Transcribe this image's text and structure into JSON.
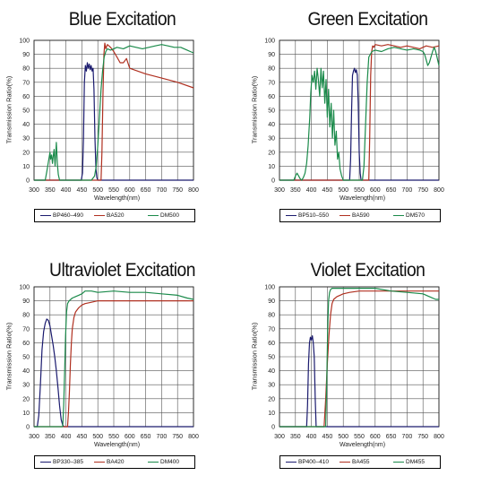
{
  "chart_data": [
    {
      "type": "line",
      "title": "Blue Excitation",
      "xlabel": "Wavelength(nm)",
      "ylabel": "Transmission Ratio(%)",
      "xlim": [
        300,
        800
      ],
      "ylim": [
        0,
        100
      ],
      "xticks": [
        300,
        350,
        400,
        450,
        500,
        550,
        600,
        650,
        700,
        750,
        800
      ],
      "yticks": [
        0,
        10,
        20,
        30,
        40,
        50,
        60,
        70,
        80,
        90,
        100
      ],
      "grid": true,
      "legend": "bottom",
      "series": [
        {
          "name": "BP460–490",
          "color": "#1a1a6e",
          "x": [
            300,
            448,
            452,
            455,
            458,
            461,
            464,
            467,
            470,
            473,
            476,
            479,
            482,
            485,
            488,
            491,
            494,
            497,
            500,
            503,
            800
          ],
          "y": [
            0,
            0,
            5,
            30,
            70,
            82,
            78,
            84,
            80,
            83,
            79,
            82,
            78,
            80,
            65,
            30,
            8,
            2,
            0,
            0,
            0
          ]
        },
        {
          "name": "BA520",
          "color": "#b03020",
          "x": [
            300,
            510,
            513,
            516,
            519,
            522,
            525,
            530,
            540,
            550,
            560,
            570,
            580,
            590,
            600,
            650,
            700,
            750,
            800
          ],
          "y": [
            0,
            0,
            20,
            60,
            90,
            98,
            94,
            97,
            95,
            92,
            88,
            84,
            84,
            87,
            80,
            76,
            73,
            70,
            66
          ]
        },
        {
          "name": "DM500",
          "color": "#1a8a4a",
          "x": [
            300,
            335,
            340,
            345,
            350,
            352,
            355,
            358,
            360,
            363,
            366,
            370,
            373,
            376,
            380,
            400,
            480,
            490,
            495,
            500,
            505,
            510,
            515,
            520,
            525,
            530,
            540,
            550,
            560,
            580,
            600,
            620,
            640,
            660,
            680,
            700,
            720,
            740,
            760,
            780,
            790,
            800
          ],
          "y": [
            0,
            0,
            6,
            13,
            20,
            15,
            18,
            12,
            17,
            22,
            10,
            27,
            12,
            4,
            0,
            0,
            0,
            3,
            10,
            25,
            45,
            65,
            78,
            88,
            92,
            94,
            93,
            94,
            95,
            94,
            96,
            95,
            94,
            95,
            96,
            97,
            96,
            95,
            95,
            93,
            92,
            91
          ]
        }
      ]
    },
    {
      "type": "line",
      "title": "Green Excitation",
      "xlabel": "Wavelength(nm)",
      "ylabel": "Transmission Ratio(%)",
      "xlim": [
        300,
        800
      ],
      "ylim": [
        0,
        100
      ],
      "xticks": [
        300,
        350,
        400,
        450,
        500,
        550,
        600,
        650,
        700,
        750,
        800
      ],
      "yticks": [
        0,
        10,
        20,
        30,
        40,
        50,
        60,
        70,
        80,
        90,
        100
      ],
      "grid": true,
      "legend": "bottom",
      "series": [
        {
          "name": "BP510–550",
          "color": "#1a1a6e",
          "x": [
            300,
            520,
            523,
            526,
            529,
            532,
            535,
            538,
            541,
            544,
            547,
            550,
            553,
            556,
            800
          ],
          "y": [
            0,
            0,
            15,
            50,
            75,
            78,
            80,
            77,
            79,
            75,
            55,
            20,
            5,
            0,
            0
          ]
        },
        {
          "name": "BA590",
          "color": "#b03020",
          "x": [
            300,
            580,
            583,
            586,
            589,
            592,
            596,
            600,
            620,
            640,
            660,
            680,
            700,
            720,
            740,
            760,
            780,
            800
          ],
          "y": [
            0,
            0,
            30,
            75,
            92,
            96,
            95,
            97,
            96,
            97,
            96,
            95,
            96,
            95,
            94,
            96,
            95,
            96
          ]
        },
        {
          "name": "DM570",
          "color": "#1a8a4a",
          "x": [
            300,
            345,
            350,
            355,
            360,
            365,
            370,
            375,
            380,
            385,
            390,
            395,
            398,
            402,
            406,
            410,
            414,
            418,
            422,
            426,
            430,
            434,
            438,
            442,
            446,
            450,
            454,
            458,
            462,
            466,
            470,
            474,
            478,
            482,
            486,
            490,
            495,
            500,
            520,
            560,
            565,
            570,
            575,
            580,
            590,
            600,
            620,
            640,
            660,
            680,
            700,
            720,
            740,
            750,
            755,
            760,
            765,
            770,
            775,
            780,
            785,
            790,
            800
          ],
          "y": [
            0,
            0,
            3,
            5,
            3,
            1,
            0,
            2,
            5,
            12,
            25,
            45,
            62,
            75,
            70,
            78,
            65,
            80,
            72,
            60,
            80,
            66,
            78,
            55,
            72,
            45,
            65,
            38,
            55,
            30,
            50,
            25,
            35,
            15,
            20,
            8,
            3,
            0,
            0,
            0,
            10,
            40,
            70,
            88,
            92,
            93,
            92,
            94,
            95,
            94,
            93,
            94,
            93,
            92,
            90,
            86,
            82,
            84,
            88,
            92,
            95,
            92,
            82
          ]
        }
      ]
    },
    {
      "type": "line",
      "title": "Ultraviolet Excitation",
      "xlabel": "Wavelength(nm)",
      "ylabel": "Transmission Ratio(%)",
      "xlim": [
        300,
        800
      ],
      "ylim": [
        0,
        100
      ],
      "xticks": [
        300,
        350,
        400,
        450,
        500,
        550,
        600,
        650,
        700,
        750,
        800
      ],
      "yticks": [
        0,
        10,
        20,
        30,
        40,
        50,
        60,
        70,
        80,
        90,
        100
      ],
      "grid": true,
      "legend": "bottom",
      "series": [
        {
          "name": "BP330–385",
          "color": "#1a1a6e",
          "x": [
            300,
            310,
            315,
            320,
            325,
            330,
            335,
            340,
            345,
            350,
            355,
            360,
            365,
            370,
            375,
            380,
            385,
            390,
            395,
            800
          ],
          "y": [
            0,
            0,
            8,
            30,
            55,
            68,
            74,
            77,
            76,
            72,
            65,
            58,
            50,
            40,
            28,
            15,
            5,
            1,
            0,
            0
          ]
        },
        {
          "name": "BA420",
          "color": "#b03020",
          "x": [
            300,
            405,
            408,
            411,
            414,
            417,
            420,
            425,
            430,
            440,
            450,
            460,
            480,
            500,
            550,
            600,
            650,
            700,
            750,
            800
          ],
          "y": [
            0,
            0,
            10,
            25,
            45,
            60,
            70,
            78,
            82,
            85,
            87,
            88,
            89,
            90,
            90,
            90,
            90,
            90,
            90,
            90
          ]
        },
        {
          "name": "DM400",
          "color": "#1a8a4a",
          "x": [
            300,
            390,
            393,
            396,
            399,
            402,
            405,
            410,
            420,
            430,
            440,
            450,
            460,
            480,
            500,
            550,
            600,
            650,
            700,
            750,
            780,
            800
          ],
          "y": [
            0,
            0,
            15,
            40,
            65,
            82,
            88,
            90,
            92,
            93,
            94,
            95,
            97,
            97,
            96,
            97,
            96,
            96,
            95,
            94,
            92,
            91
          ]
        }
      ]
    },
    {
      "type": "line",
      "title": "Violet Excitation",
      "xlabel": "Wavelength(nm)",
      "ylabel": "Transmission Ratio(%)",
      "xlim": [
        300,
        800
      ],
      "ylim": [
        0,
        100
      ],
      "xticks": [
        300,
        350,
        400,
        450,
        500,
        550,
        600,
        650,
        700,
        750,
        800
      ],
      "yticks": [
        0,
        10,
        20,
        30,
        40,
        50,
        60,
        70,
        80,
        90,
        100
      ],
      "grid": true,
      "legend": "bottom",
      "series": [
        {
          "name": "BP400–410",
          "color": "#1a1a6e",
          "x": [
            300,
            385,
            388,
            391,
            394,
            397,
            400,
            403,
            406,
            409,
            412,
            415,
            800
          ],
          "y": [
            0,
            0,
            15,
            45,
            60,
            64,
            62,
            65,
            60,
            50,
            20,
            0,
            0
          ]
        },
        {
          "name": "BA455",
          "color": "#b03020",
          "x": [
            300,
            440,
            445,
            450,
            455,
            460,
            465,
            470,
            480,
            490,
            500,
            520,
            550,
            600,
            650,
            700,
            750,
            800
          ],
          "y": [
            0,
            0,
            20,
            45,
            65,
            80,
            88,
            91,
            93,
            94,
            95,
            96,
            97,
            97,
            97,
            97,
            97,
            97
          ]
        },
        {
          "name": "DM455",
          "color": "#1a8a4a",
          "x": [
            300,
            445,
            448,
            451,
            454,
            457,
            460,
            465,
            480,
            500,
            550,
            600,
            650,
            700,
            750,
            770,
            790,
            800
          ],
          "y": [
            0,
            0,
            30,
            70,
            90,
            96,
            98,
            99,
            99,
            99,
            99,
            99,
            97,
            96,
            95,
            93,
            91,
            91
          ]
        }
      ]
    }
  ]
}
